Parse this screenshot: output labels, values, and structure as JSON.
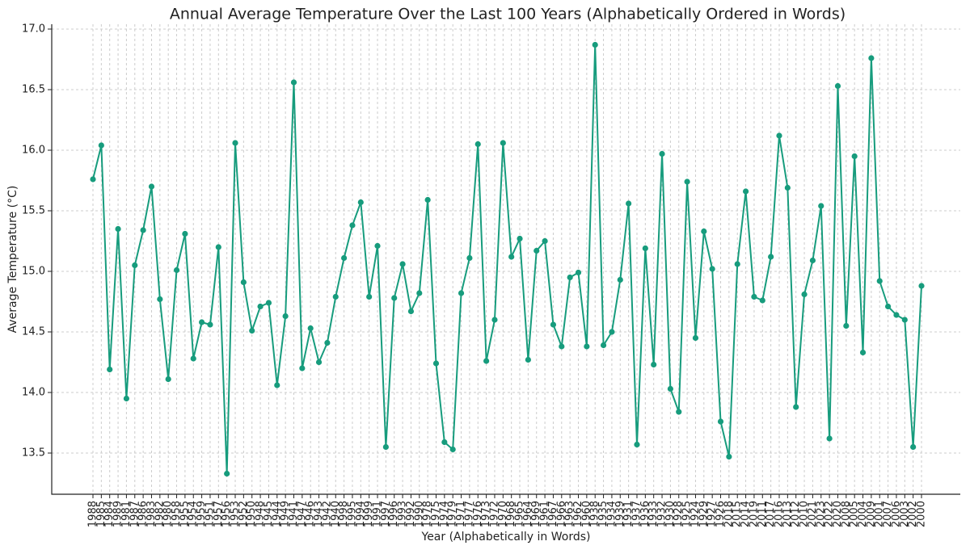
{
  "chart_data": {
    "type": "line",
    "title": "Annual Average Temperature Over the Last 100 Years (Alphabetically Ordered in Words)",
    "x_label": "Year (Alphabetically in Words)",
    "y_label": "Average Temperature (°C)",
    "categories": [
      "1988",
      "1985",
      "1984",
      "1989",
      "1981",
      "1987",
      "1986",
      "1983",
      "1982",
      "1980",
      "1958",
      "1955",
      "1954",
      "1959",
      "1951",
      "1957",
      "1956",
      "1953",
      "1952",
      "1950",
      "1948",
      "1945",
      "1944",
      "1949",
      "1941",
      "1947",
      "1946",
      "1943",
      "1942",
      "1940",
      "1998",
      "1995",
      "1994",
      "1999",
      "1991",
      "1997",
      "1996",
      "1993",
      "1992",
      "1990",
      "1978",
      "1975",
      "1974",
      "1979",
      "1971",
      "1977",
      "1976",
      "1973",
      "1972",
      "1970",
      "1968",
      "1965",
      "1964",
      "1969",
      "1961",
      "1967",
      "1966",
      "1963",
      "1962",
      "1960",
      "1938",
      "1935",
      "1934",
      "1939",
      "1931",
      "1937",
      "1936",
      "1933",
      "1932",
      "1930",
      "1928",
      "1925",
      "1924",
      "1929",
      "1927",
      "1926",
      "2018",
      "2015",
      "2014",
      "2019",
      "2011",
      "2017",
      "2016",
      "2013",
      "2012",
      "2010",
      "2021",
      "2023",
      "2022",
      "2020",
      "2008",
      "2005",
      "2004",
      "2009",
      "2001",
      "2007",
      "2006",
      "2003",
      "2002",
      "2000"
    ],
    "series": [
      {
        "name": "Average Temperature",
        "color": "#179c7d",
        "values": [
          15.76,
          16.04,
          14.19,
          15.35,
          13.95,
          15.05,
          15.34,
          15.7,
          14.77,
          14.11,
          15.01,
          15.31,
          14.28,
          14.58,
          14.56,
          15.2,
          13.33,
          16.06,
          14.91,
          14.51,
          14.71,
          14.74,
          14.06,
          14.63,
          16.56,
          14.2,
          14.53,
          14.25,
          14.41,
          14.79,
          15.11,
          15.38,
          15.57,
          14.79,
          15.21,
          13.55,
          14.78,
          15.06,
          14.67,
          14.82,
          15.59,
          14.24,
          13.59,
          13.53,
          14.82,
          15.11,
          16.05,
          14.26,
          14.6,
          16.06,
          15.12,
          15.27,
          14.27,
          15.17,
          15.25,
          14.56,
          14.38,
          14.95,
          14.99,
          14.38,
          16.87,
          14.39,
          14.5,
          14.93,
          15.56,
          13.57,
          15.19,
          14.23,
          15.97,
          14.03,
          13.84,
          15.74,
          14.45,
          15.33,
          15.02,
          13.76,
          13.47,
          15.06,
          15.66,
          14.79,
          14.76,
          15.12,
          16.12,
          15.69,
          13.88,
          14.81,
          15.09,
          15.54,
          13.62,
          16.53,
          14.55,
          15.95,
          14.33,
          16.76,
          14.92,
          14.71,
          14.64,
          14.6,
          13.55,
          14.88
        ]
      }
    ],
    "ylim": [
      13.16,
      17.04
    ],
    "yticks": [
      13.5,
      {
        "value": 14.0,
        "label": "14.0"
      },
      14.5,
      {
        "value": 15.0,
        "label": "15.0"
      },
      15.5,
      {
        "value": 16.0,
        "label": "16.0"
      },
      16.5,
      {
        "value": 17.0,
        "label": "17.0"
      }
    ],
    "grid": true
  }
}
